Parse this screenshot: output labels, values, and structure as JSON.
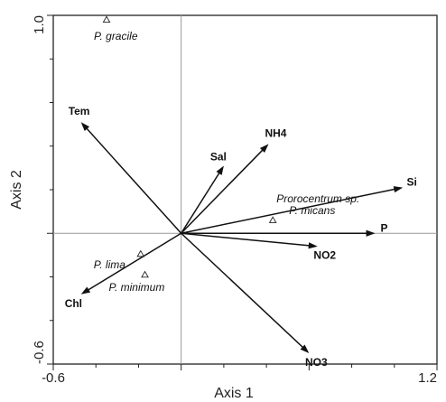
{
  "chart_data": {
    "type": "scatter",
    "subtype": "ordination biplot (RDA/CCA)",
    "xlabel": "Axis 1",
    "ylabel": "Axis 2",
    "xlim": [
      -0.6,
      1.2
    ],
    "ylim": [
      -0.6,
      1.0
    ],
    "x_tick_labels": [
      "-0.6",
      "1.2"
    ],
    "y_tick_labels": [
      "-0.6",
      "1.0"
    ],
    "grid": false,
    "origin_lines": true,
    "environmental_vectors": [
      {
        "label": "Tem",
        "x": -0.47,
        "y": 0.51
      },
      {
        "label": "Sal",
        "x": 0.2,
        "y": 0.31
      },
      {
        "label": "NH4",
        "x": 0.41,
        "y": 0.41
      },
      {
        "label": "Si",
        "x": 1.04,
        "y": 0.21
      },
      {
        "label": "P",
        "x": 0.91,
        "y": 0.0
      },
      {
        "label": "NO2",
        "x": 0.64,
        "y": -0.06
      },
      {
        "label": "NO3",
        "x": 0.6,
        "y": -0.55
      },
      {
        "label": "Chl",
        "x": -0.47,
        "y": -0.28
      }
    ],
    "species": [
      {
        "label": "P. gracile",
        "x": -0.35,
        "y": 0.98
      },
      {
        "label": "Prorocentrum sp.",
        "x": 0.43,
        "y": 0.06
      },
      {
        "label": "P. micans",
        "x": 0.43,
        "y": 0.06
      },
      {
        "label": "P. lima",
        "x": -0.19,
        "y": -0.095
      },
      {
        "label": "P. minimum",
        "x": -0.17,
        "y": -0.19
      }
    ]
  }
}
